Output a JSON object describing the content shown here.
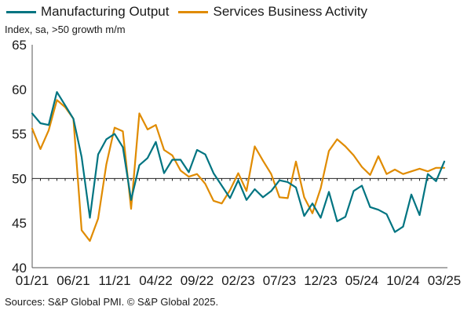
{
  "chart_data": {
    "type": "line",
    "title": "",
    "subtitle": "Index, sa, >50 growth m/m",
    "source": "Sources: S&P Global PMI. © S&P Global 2025.",
    "ylim": [
      40,
      65
    ],
    "yticks": [
      40,
      45,
      50,
      55,
      60,
      65
    ],
    "reference_line": 50,
    "grid": false,
    "legend_position": "top",
    "x": [
      "01/21",
      "02/21",
      "03/21",
      "04/21",
      "05/21",
      "06/21",
      "07/21",
      "08/21",
      "09/21",
      "10/21",
      "11/21",
      "12/21",
      "01/22",
      "02/22",
      "03/22",
      "04/22",
      "05/22",
      "06/22",
      "07/22",
      "08/22",
      "09/22",
      "10/22",
      "11/22",
      "12/22",
      "01/23",
      "02/23",
      "03/23",
      "04/23",
      "05/23",
      "06/23",
      "07/23",
      "08/23",
      "09/23",
      "10/23",
      "11/23",
      "12/23",
      "01/24",
      "02/24",
      "03/24",
      "04/24",
      "05/24",
      "06/24",
      "07/24",
      "08/24",
      "09/24",
      "10/24",
      "11/24",
      "12/24",
      "01/25",
      "02/25",
      "03/25"
    ],
    "xtick_labels": [
      "01/21",
      "06/21",
      "11/21",
      "04/22",
      "09/22",
      "02/23",
      "07/23",
      "12/23",
      "05/24",
      "10/24",
      "03/25"
    ],
    "series": [
      {
        "name": "Manufacturing Output",
        "color": "#007481",
        "values": [
          57.3,
          56.2,
          56.0,
          59.7,
          58.2,
          56.7,
          52.4,
          45.6,
          52.7,
          54.4,
          55.0,
          53.5,
          47.6,
          51.5,
          52.3,
          54.1,
          50.6,
          52.1,
          52.1,
          50.7,
          53.2,
          52.7,
          50.6,
          49.2,
          47.8,
          49.8,
          47.6,
          48.8,
          47.9,
          48.6,
          49.8,
          49.6,
          49.0,
          45.8,
          47.2,
          45.6,
          48.5,
          45.2,
          45.7,
          48.6,
          49.2,
          46.8,
          46.5,
          46.0,
          44.0,
          44.6,
          48.2,
          45.9,
          50.5,
          49.7,
          51.9
        ]
      },
      {
        "name": "Services Business Activity",
        "color": "#e08b00",
        "values": [
          55.6,
          53.3,
          55.4,
          58.8,
          58.0,
          56.7,
          44.2,
          43.0,
          45.5,
          51.6,
          55.7,
          55.3,
          46.6,
          57.3,
          55.5,
          56.0,
          53.2,
          52.6,
          50.9,
          50.2,
          50.5,
          49.4,
          47.5,
          47.2,
          48.7,
          50.6,
          48.6,
          53.6,
          52.0,
          50.5,
          47.9,
          47.8,
          51.9,
          47.9,
          46.1,
          48.9,
          53.1,
          54.4,
          53.6,
          52.6,
          51.3,
          50.4,
          52.5,
          50.5,
          51.0,
          50.5,
          50.8,
          51.1,
          50.8,
          51.2,
          51.2
        ]
      }
    ]
  },
  "legend": {
    "manufacturing_label": "Manufacturing Output",
    "services_label": "Services Business Activity"
  }
}
